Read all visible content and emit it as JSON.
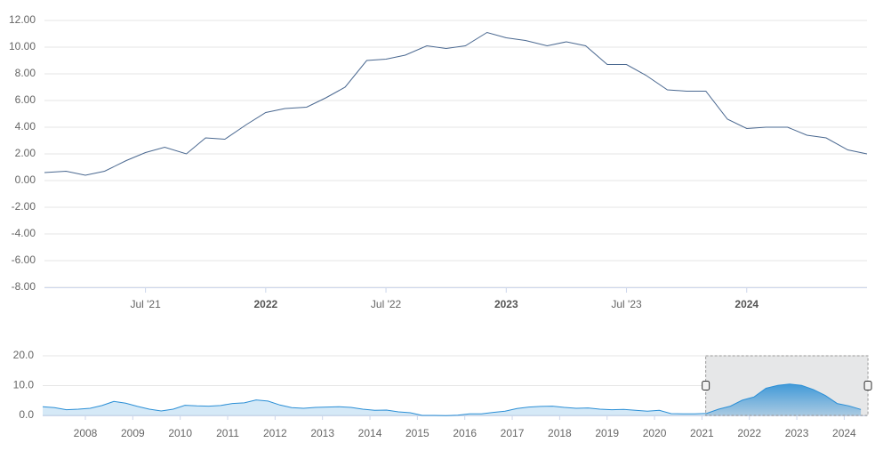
{
  "chart_data": [
    {
      "type": "line",
      "color": "#4a6890",
      "grid": true,
      "x": [
        2021.08,
        2021.17,
        2021.25,
        2021.33,
        2021.42,
        2021.5,
        2021.58,
        2021.67,
        2021.75,
        2021.83,
        2021.92,
        2022.0,
        2022.08,
        2022.17,
        2022.25,
        2022.33,
        2022.42,
        2022.5,
        2022.58,
        2022.67,
        2022.75,
        2022.83,
        2022.92,
        2023.0,
        2023.08,
        2023.17,
        2023.25,
        2023.33,
        2023.42,
        2023.5,
        2023.58,
        2023.67,
        2023.75,
        2023.83,
        2023.92,
        2024.0,
        2024.08,
        2024.17,
        2024.25,
        2024.33,
        2024.42,
        2024.5
      ],
      "values": [
        0.6,
        0.7,
        0.4,
        0.7,
        1.5,
        2.1,
        2.5,
        2.0,
        3.2,
        3.1,
        4.2,
        5.1,
        5.4,
        5.5,
        6.2,
        7.0,
        9.0,
        9.1,
        9.4,
        10.1,
        9.9,
        10.1,
        11.1,
        10.7,
        10.5,
        10.1,
        10.4,
        10.1,
        8.7,
        8.7,
        7.9,
        6.8,
        6.7,
        6.7,
        4.6,
        3.9,
        4.0,
        4.0,
        3.4,
        3.2,
        2.3,
        2.0
      ],
      "xlim": [
        2021.08,
        2024.5
      ],
      "xticks": [
        {
          "value": 2021.5,
          "label": "Jul '21"
        },
        2022,
        {
          "value": 2022.5,
          "label": "Jul '22"
        },
        2023,
        {
          "value": 2023.5,
          "label": "Jul '23"
        },
        2024
      ],
      "ylim": [
        -8,
        12
      ],
      "yticks": [
        {
          "value": -8,
          "label": "-8.00"
        },
        {
          "value": -6,
          "label": "-6.00"
        },
        {
          "value": -4,
          "label": "-4.00"
        },
        {
          "value": -2,
          "label": "-2.00"
        },
        {
          "value": 0,
          "label": "0.00"
        },
        {
          "value": 2,
          "label": "2.00"
        },
        {
          "value": 4,
          "label": "4.00"
        },
        {
          "value": 6,
          "label": "6.00"
        },
        {
          "value": 8,
          "label": "8.00"
        },
        {
          "value": 10,
          "label": "10.00"
        },
        {
          "value": 12,
          "label": "12.00"
        }
      ]
    },
    {
      "type": "area",
      "color": "#2b8fd6",
      "grid": true,
      "x": [
        2007.1,
        2007.35,
        2007.6,
        2007.85,
        2008.1,
        2008.35,
        2008.6,
        2008.85,
        2009.1,
        2009.35,
        2009.6,
        2009.85,
        2010.1,
        2010.35,
        2010.6,
        2010.85,
        2011.1,
        2011.35,
        2011.6,
        2011.85,
        2012.1,
        2012.35,
        2012.6,
        2012.85,
        2013.1,
        2013.35,
        2013.6,
        2013.85,
        2014.1,
        2014.35,
        2014.6,
        2014.85,
        2015.1,
        2015.35,
        2015.6,
        2015.85,
        2016.1,
        2016.35,
        2016.6,
        2016.85,
        2017.1,
        2017.35,
        2017.6,
        2017.85,
        2018.1,
        2018.35,
        2018.6,
        2018.85,
        2019.1,
        2019.35,
        2019.6,
        2019.85,
        2020.1,
        2020.35,
        2020.6,
        2020.85,
        2021.1,
        2021.35,
        2021.6,
        2021.85,
        2022.1,
        2022.35,
        2022.6,
        2022.85,
        2023.1,
        2023.35,
        2023.6,
        2023.85,
        2024.1,
        2024.35
      ],
      "values": [
        2.9,
        2.6,
        1.9,
        2.1,
        2.4,
        3.3,
        4.7,
        4.1,
        3.0,
        2.1,
        1.5,
        2.1,
        3.4,
        3.2,
        3.1,
        3.3,
        4.0,
        4.2,
        5.2,
        4.8,
        3.5,
        2.6,
        2.4,
        2.7,
        2.8,
        2.9,
        2.7,
        2.1,
        1.7,
        1.8,
        1.2,
        0.9,
        0.0,
        0.0,
        -0.1,
        0.1,
        0.5,
        0.5,
        1.0,
        1.4,
        2.3,
        2.8,
        3.0,
        3.1,
        2.7,
        2.4,
        2.5,
        2.1,
        1.9,
        2.0,
        1.7,
        1.4,
        1.7,
        0.6,
        0.5,
        0.5,
        0.7,
        2.1,
        3.1,
        5.1,
        6.2,
        9.1,
        10.1,
        10.5,
        10.1,
        8.7,
        6.7,
        4.0,
        3.2,
        2.0
      ],
      "xlim": [
        2007.1,
        2024.48
      ],
      "xticks": [
        2008,
        2009,
        2010,
        2011,
        2012,
        2013,
        2014,
        2015,
        2016,
        2017,
        2018,
        2019,
        2020,
        2021,
        2022,
        2023,
        2024
      ],
      "ylim": [
        0,
        20
      ],
      "yticks": [
        {
          "value": 0,
          "label": "0.0"
        },
        {
          "value": 10,
          "label": "10.0"
        },
        {
          "value": 20,
          "label": "20.0"
        }
      ]
    }
  ]
}
